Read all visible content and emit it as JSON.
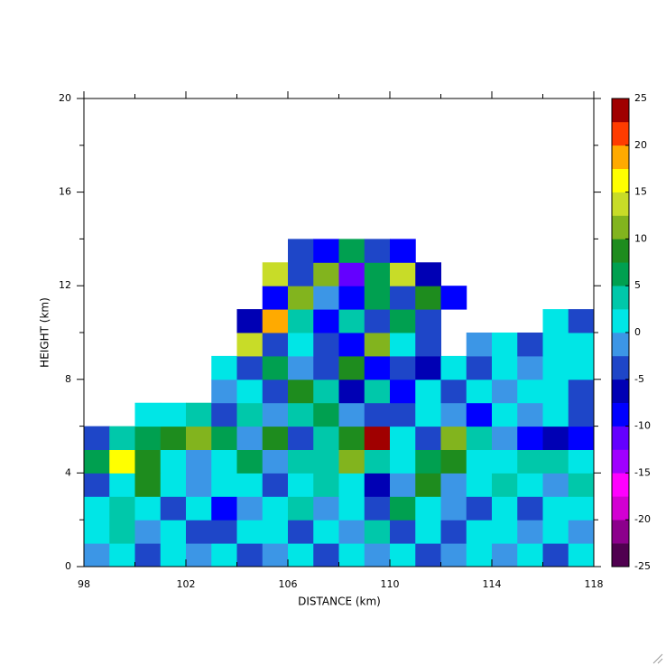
{
  "chart_data": {
    "type": "heatmap",
    "xlabel": "DISTANCE (km)",
    "ylabel": "HEIGHT (km)",
    "x": [
      98.5,
      99.5,
      100.5,
      101.5,
      102.5,
      103.5,
      104.5,
      105.5,
      106.5,
      107.5,
      108.5,
      109.5,
      110.5,
      111.5,
      112.5,
      113.5,
      114.5,
      115.5,
      116.5,
      117.5
    ],
    "y": [
      0.5,
      1.5,
      2.5,
      3.5,
      4.5,
      5.5,
      6.5,
      7.5,
      8.5,
      9.5,
      10.5,
      11.5,
      12.5,
      13.5
    ],
    "values": [
      [
        -2,
        0,
        -3,
        2,
        -2,
        0,
        -4,
        -2,
        0,
        -3,
        1,
        -2,
        0,
        -3,
        -1,
        2,
        -2,
        0,
        -3,
        1
      ],
      [
        2,
        4,
        -2,
        0,
        -5,
        -3,
        0,
        2,
        -3,
        0,
        -2,
        3,
        -3,
        0,
        -4,
        0,
        2,
        -2,
        0,
        -2
      ],
      [
        0,
        3,
        2,
        -4,
        0,
        -8,
        -2,
        0,
        4,
        -2,
        0,
        -3,
        6,
        0,
        -2,
        -4,
        0,
        -3,
        2,
        0
      ],
      [
        -3,
        0,
        8,
        0,
        -2,
        2,
        0,
        -3,
        0,
        3,
        0,
        -6,
        -2,
        9,
        -2,
        0,
        3,
        0,
        -2,
        3
      ],
      [
        5,
        15,
        8,
        2,
        -2,
        0,
        6,
        -2,
        3,
        4,
        10,
        3,
        0,
        6,
        9,
        2,
        0,
        4,
        3,
        2
      ],
      [
        -4,
        3,
        5,
        8,
        12,
        5,
        -2,
        8,
        -4,
        4,
        8,
        24,
        0,
        -3,
        12,
        3,
        -2,
        -8,
        -6,
        -10
      ],
      [
        null,
        null,
        2,
        0,
        3,
        -5,
        4,
        -2,
        3,
        6,
        -2,
        -5,
        -3,
        0,
        -2,
        -8,
        0,
        -2,
        0,
        -3
      ],
      [
        null,
        null,
        null,
        null,
        null,
        -2,
        0,
        -3,
        8,
        3,
        -6,
        3,
        -8,
        2,
        -4,
        0,
        -2,
        0,
        2,
        -3
      ],
      [
        null,
        null,
        null,
        null,
        null,
        0,
        -3,
        6,
        -2,
        -4,
        8,
        -8,
        -3,
        -6,
        0,
        -3,
        0,
        -2,
        0,
        0
      ],
      [
        null,
        null,
        null,
        null,
        null,
        null,
        14,
        -3,
        0,
        -5,
        -8,
        10,
        0,
        -3,
        null,
        -2,
        0,
        -3,
        2,
        0
      ],
      [
        null,
        null,
        null,
        null,
        null,
        null,
        -6,
        18,
        4,
        -10,
        3,
        -3,
        6,
        -5,
        null,
        null,
        null,
        null,
        0,
        -3
      ],
      [
        null,
        null,
        null,
        null,
        null,
        null,
        null,
        -8,
        12,
        -2,
        -10,
        6,
        -3,
        8,
        -8,
        null,
        null,
        null,
        null,
        null
      ],
      [
        null,
        null,
        null,
        null,
        null,
        null,
        null,
        14,
        -4,
        10,
        -12,
        5,
        14,
        -6,
        null,
        null,
        null,
        null,
        null,
        null
      ],
      [
        null,
        null,
        null,
        null,
        null,
        null,
        null,
        null,
        -3,
        -8,
        6,
        -5,
        -10,
        null,
        null,
        null,
        null,
        null,
        null,
        null
      ]
    ],
    "xlim": [
      98,
      118
    ],
    "xticks": [
      98,
      102,
      106,
      110,
      114,
      118
    ],
    "ylim": [
      0,
      20
    ],
    "yticks": [
      0,
      4,
      8,
      12,
      16,
      20
    ],
    "clim": [
      -25,
      25
    ],
    "cticks": [
      -25,
      -20,
      -15,
      -10,
      -5,
      0,
      5,
      10,
      15,
      20,
      25
    ],
    "colorscale": [
      "#500050",
      "#8c008c",
      "#d200d2",
      "#ff00ff",
      "#a000ff",
      "#6400ff",
      "#0000ff",
      "#0000b4",
      "#1e46c8",
      "#3c96e6",
      "#00e6e6",
      "#00c8aa",
      "#00a050",
      "#1e8c1e",
      "#82b41e",
      "#c8dc28",
      "#ffff00",
      "#ffaa00",
      "#ff3c00",
      "#a00000"
    ]
  }
}
